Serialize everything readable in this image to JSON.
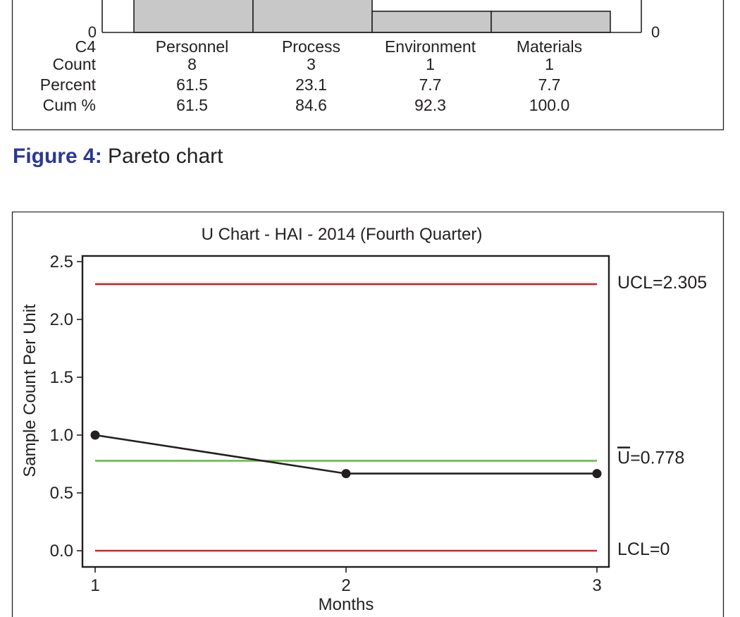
{
  "figure_caption": {
    "label": "Figure 4:",
    "text": "Pareto chart"
  },
  "chart_data": [
    {
      "type": "bar",
      "subtype": "pareto",
      "left_axis_tick": "0",
      "right_axis_tick": "0",
      "row_headers": [
        "C4",
        "Count",
        "Percent",
        "Cum %"
      ],
      "categories": [
        "Personnel",
        "Process",
        "Environment",
        "Materials"
      ],
      "counts": [
        "8",
        "3",
        "1",
        "1"
      ],
      "values": [
        8,
        3,
        1,
        1
      ],
      "percent": [
        "61.5",
        "23.1",
        "7.7",
        "7.7"
      ],
      "cum_percent": [
        "61.5",
        "84.6",
        "92.3",
        "100.0"
      ],
      "colors": {
        "bar_fill": "#c8c8c9",
        "bar_stroke": "#231f20"
      }
    },
    {
      "type": "line",
      "subtype": "u-chart",
      "title": "U Chart - HAI - 2014 (Fourth Quarter)",
      "xlabel": "Months",
      "ylabel": "Sample Count Per Unit",
      "x": [
        1,
        2,
        3
      ],
      "x_ticks": [
        "1",
        "2",
        "3"
      ],
      "values": [
        1.0,
        0.667,
        0.667
      ],
      "ylim": [
        -0.1,
        2.5
      ],
      "y_ticks": [
        {
          "value": 2.5,
          "label": "2.5"
        },
        {
          "value": 2.0,
          "label": "2.0"
        },
        {
          "value": 1.5,
          "label": "1.5"
        },
        {
          "value": 1.0,
          "label": "1.0"
        },
        {
          "value": 0.5,
          "label": "0.5"
        },
        {
          "value": 0.0,
          "label": "0.0"
        }
      ],
      "control_lines": [
        {
          "key": "ucl",
          "value": 2.305,
          "label": "UCL=2.305",
          "color": "#d2232a"
        },
        {
          "key": "center",
          "value": 0.778,
          "label_symbol": "U",
          "label_value": "=0.778",
          "color": "#6abd45"
        },
        {
          "key": "lcl",
          "value": 0,
          "label": "LCL=0",
          "color": "#d2232a"
        }
      ],
      "colors": {
        "series": "#231f20"
      }
    }
  ]
}
